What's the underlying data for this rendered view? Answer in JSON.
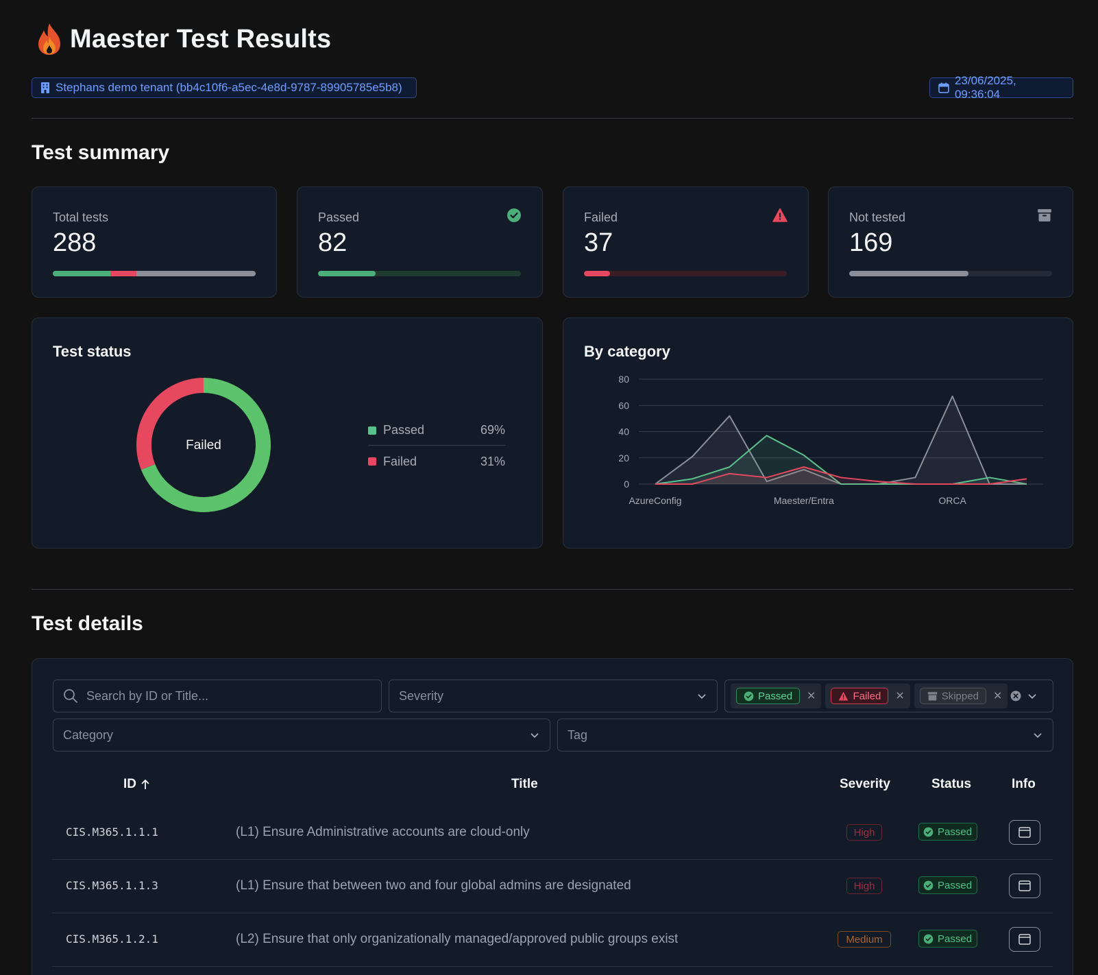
{
  "header": {
    "title": "Maester Test Results",
    "tenant": "Stephans demo tenant (bb4c10f6-a5ec-4e8d-9787-89905785e5b8)",
    "date": "23/06/2025, 09:36:04"
  },
  "summary": {
    "heading": "Test summary",
    "total": {
      "label": "Total tests",
      "value": "288"
    },
    "passed": {
      "label": "Passed",
      "value": "82",
      "fraction": 0.285
    },
    "failed": {
      "label": "Failed",
      "value": "37",
      "fraction": 0.128
    },
    "not_tested": {
      "label": "Not tested",
      "value": "169",
      "fraction": 0.587
    }
  },
  "status_panel": {
    "title": "Test status",
    "center_label": "Failed",
    "legend": [
      {
        "name": "Passed",
        "pct": "69%",
        "color": "#5cc26c"
      },
      {
        "name": "Failed",
        "pct": "31%",
        "color": "#e5485f"
      }
    ]
  },
  "chart_data": {
    "type": "area",
    "title": "By category",
    "x_tick_labels": [
      "AzureConfig",
      "Maester/Entra",
      "ORCA"
    ],
    "y_ticks": [
      0,
      20,
      40,
      60,
      80
    ],
    "ylim": [
      0,
      80
    ],
    "grid": true,
    "legend": false,
    "point_count": 11,
    "series": [
      {
        "color": "#5cc28d",
        "values": [
          0,
          4,
          13,
          37,
          22,
          0,
          0,
          0,
          0,
          5,
          0
        ]
      },
      {
        "color": "#e5485f",
        "values": [
          0,
          0,
          8,
          5,
          13,
          5,
          2,
          0,
          0,
          0,
          4
        ]
      },
      {
        "color": "#8b8f99",
        "values": [
          0,
          21,
          52,
          2,
          11,
          0,
          0,
          5,
          67,
          0,
          0
        ]
      }
    ]
  },
  "details": {
    "heading": "Test details",
    "search_placeholder": "Search by ID or Title...",
    "severity_placeholder": "Severity",
    "category_placeholder": "Category",
    "tag_placeholder": "Tag",
    "filter_chips": [
      "Passed",
      "Failed",
      "Skipped"
    ],
    "columns": {
      "id": "ID",
      "title": "Title",
      "severity": "Severity",
      "status": "Status",
      "info": "Info"
    },
    "rows": [
      {
        "id": "CIS.M365.1.1.1",
        "title": "(L1) Ensure Administrative accounts are cloud-only",
        "severity": "High",
        "status": "Passed"
      },
      {
        "id": "CIS.M365.1.1.3",
        "title": "(L1) Ensure that between two and four global admins are designated",
        "severity": "High",
        "status": "Passed"
      },
      {
        "id": "CIS.M365.1.2.1",
        "title": "(L2) Ensure that only organizationally managed/approved public groups exist",
        "severity": "Medium",
        "status": "Passed"
      }
    ]
  }
}
